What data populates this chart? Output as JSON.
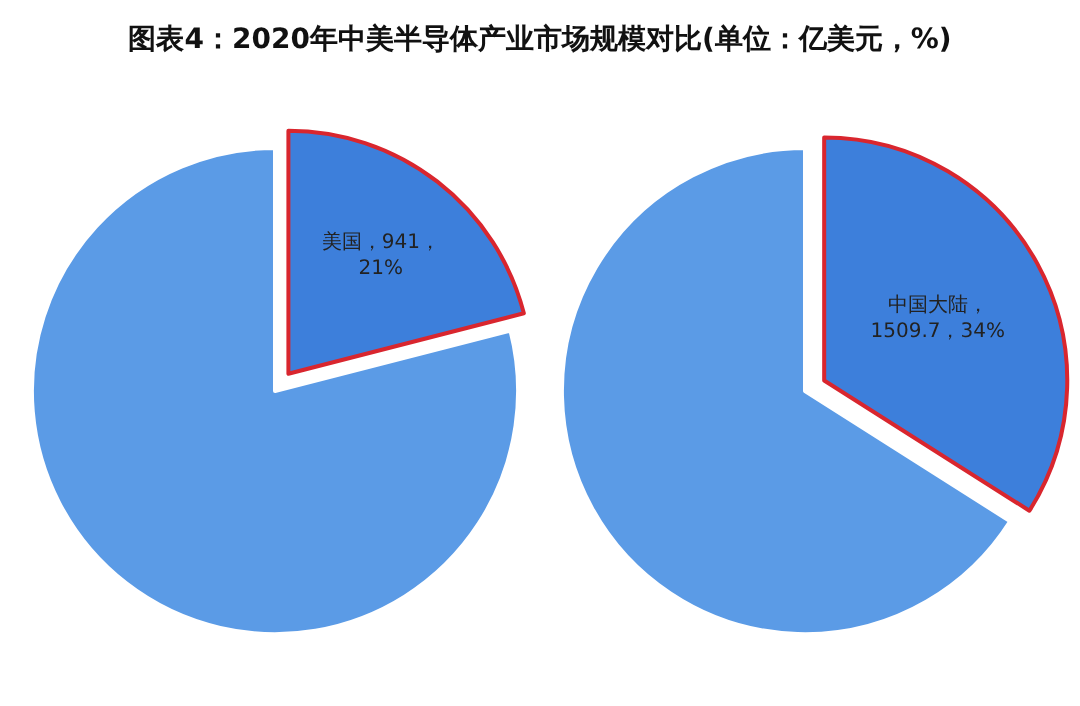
{
  "chart_data": [
    {
      "type": "pie",
      "title": "图表4：2020年中美半导体产业市场规模对比(单位：亿美元，%)",
      "categories": [
        "美国",
        null
      ],
      "values": [
        21,
        79
      ],
      "colors": [
        "#3d7fdb",
        "#5b9be6"
      ],
      "value_labels": [
        "，941，\n21%",
        null
      ]
    },
    {
      "type": "pie",
      "categories": [
        "中国大陆",
        null
      ],
      "values": [
        34,
        66
      ],
      "colors": [
        "#3d7fdb",
        "#5b9be6"
      ],
      "value_labels": [
        "，\n1509.7，34%",
        null
      ]
    }
  ]
}
